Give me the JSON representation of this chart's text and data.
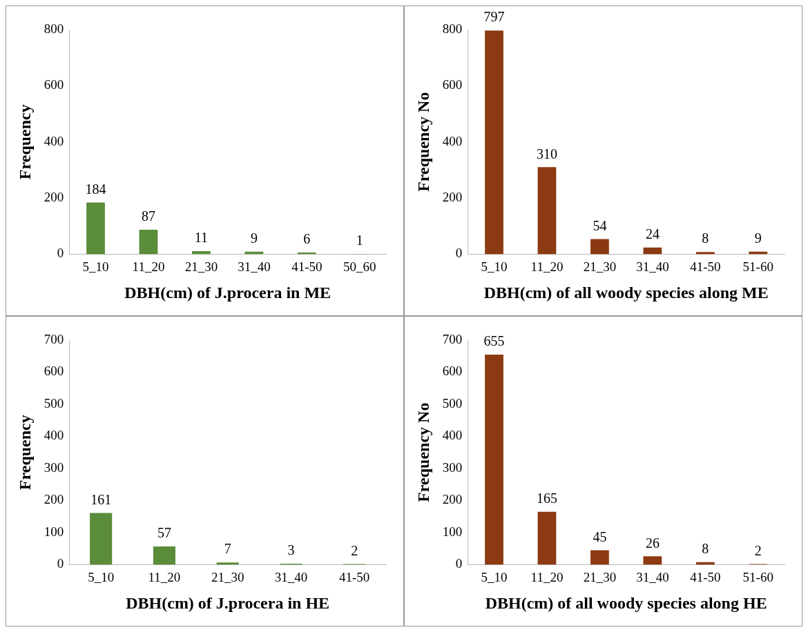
{
  "chart_data": [
    {
      "type": "bar",
      "categories": [
        "5_10",
        "11_20",
        "21_30",
        "31_40",
        "41-50",
        "50_60"
      ],
      "values": [
        184,
        87,
        11,
        9,
        6,
        1
      ],
      "color": "#5b8c3a",
      "ylim": [
        0,
        800
      ],
      "yticks": [
        0,
        200,
        400,
        600,
        800
      ],
      "ylabel": "Frequency",
      "xlabel": "DBH(cm) of J.procera in ME",
      "data_labels": true
    },
    {
      "type": "bar",
      "categories": [
        "5_10",
        "11_20",
        "21_30",
        "31_40",
        "41-50",
        "51-60"
      ],
      "values": [
        797,
        310,
        54,
        24,
        8,
        9
      ],
      "color": "#8b3a12",
      "ylim": [
        0,
        800
      ],
      "yticks": [
        0,
        200,
        400,
        600,
        800
      ],
      "ylabel": "Frequency No",
      "xlabel": "DBH(cm) of all woody species along ME",
      "data_labels": true
    },
    {
      "type": "bar",
      "categories": [
        "5_10",
        "11_20",
        "21_30",
        "31_40",
        "41-50"
      ],
      "values": [
        161,
        57,
        7,
        3,
        2
      ],
      "color": "#5b8c3a",
      "ylim": [
        0,
        700
      ],
      "yticks": [
        0,
        100,
        200,
        300,
        400,
        500,
        600,
        700
      ],
      "ylabel": "Frequency",
      "xlabel": "DBH(cm) of J.procera in HE",
      "data_labels": true
    },
    {
      "type": "bar",
      "categories": [
        "5_10",
        "11_20",
        "21_30",
        "31_40",
        "41-50",
        "51-60"
      ],
      "values": [
        655,
        165,
        45,
        26,
        8,
        2
      ],
      "color": "#8b3a12",
      "ylim": [
        0,
        700
      ],
      "yticks": [
        0,
        100,
        200,
        300,
        400,
        500,
        600,
        700
      ],
      "ylabel": "Frequency No",
      "xlabel": "DBH(cm) of all woody species along HE",
      "data_labels": true
    }
  ]
}
